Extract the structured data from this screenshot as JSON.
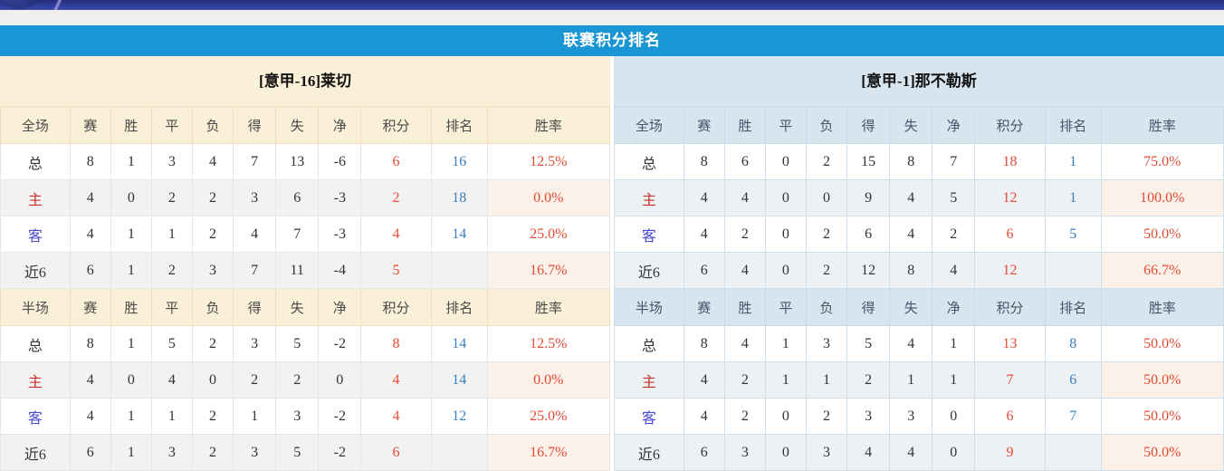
{
  "header": {
    "title": "联赛积分排名"
  },
  "columns": [
    "赛",
    "胜",
    "平",
    "负",
    "得",
    "失",
    "净",
    "积分",
    "排名",
    "胜率"
  ],
  "panels": [
    {
      "id": "left",
      "team_label": "[意甲-16]莱切",
      "sections": [
        {
          "scope_label": "全场",
          "rows": [
            {
              "label": "总",
              "type": "total",
              "values": [
                "8",
                "1",
                "3",
                "4",
                "7",
                "13",
                "-6",
                "6",
                "16",
                "12.5%"
              ]
            },
            {
              "label": "主",
              "type": "home",
              "values": [
                "4",
                "0",
                "2",
                "2",
                "3",
                "6",
                "-3",
                "2",
                "18",
                "0.0%"
              ]
            },
            {
              "label": "客",
              "type": "away",
              "values": [
                "4",
                "1",
                "1",
                "2",
                "4",
                "7",
                "-3",
                "4",
                "14",
                "25.0%"
              ]
            },
            {
              "label": "近6",
              "type": "recent",
              "values": [
                "6",
                "1",
                "2",
                "3",
                "7",
                "11",
                "-4",
                "5",
                "",
                "16.7%"
              ]
            }
          ]
        },
        {
          "scope_label": "半场",
          "rows": [
            {
              "label": "总",
              "type": "total",
              "values": [
                "8",
                "1",
                "5",
                "2",
                "3",
                "5",
                "-2",
                "8",
                "14",
                "12.5%"
              ]
            },
            {
              "label": "主",
              "type": "home",
              "values": [
                "4",
                "0",
                "4",
                "0",
                "2",
                "2",
                "0",
                "4",
                "14",
                "0.0%"
              ]
            },
            {
              "label": "客",
              "type": "away",
              "values": [
                "4",
                "1",
                "1",
                "2",
                "1",
                "3",
                "-2",
                "4",
                "12",
                "25.0%"
              ]
            },
            {
              "label": "近6",
              "type": "recent",
              "values": [
                "6",
                "1",
                "3",
                "2",
                "3",
                "5",
                "-2",
                "6",
                "",
                "16.7%"
              ]
            }
          ]
        }
      ]
    },
    {
      "id": "right",
      "team_label": "[意甲-1]那不勒斯",
      "sections": [
        {
          "scope_label": "全场",
          "rows": [
            {
              "label": "总",
              "type": "total",
              "values": [
                "8",
                "6",
                "0",
                "2",
                "15",
                "8",
                "7",
                "18",
                "1",
                "75.0%"
              ]
            },
            {
              "label": "主",
              "type": "home",
              "values": [
                "4",
                "4",
                "0",
                "0",
                "9",
                "4",
                "5",
                "12",
                "1",
                "100.0%"
              ]
            },
            {
              "label": "客",
              "type": "away",
              "values": [
                "4",
                "2",
                "0",
                "2",
                "6",
                "4",
                "2",
                "6",
                "5",
                "50.0%"
              ]
            },
            {
              "label": "近6",
              "type": "recent",
              "values": [
                "6",
                "4",
                "0",
                "2",
                "12",
                "8",
                "4",
                "12",
                "",
                "66.7%"
              ]
            }
          ]
        },
        {
          "scope_label": "半场",
          "rows": [
            {
              "label": "总",
              "type": "total",
              "values": [
                "8",
                "4",
                "1",
                "3",
                "5",
                "4",
                "1",
                "13",
                "8",
                "50.0%"
              ]
            },
            {
              "label": "主",
              "type": "home",
              "values": [
                "4",
                "2",
                "1",
                "1",
                "2",
                "1",
                "1",
                "7",
                "6",
                "50.0%"
              ]
            },
            {
              "label": "客",
              "type": "away",
              "values": [
                "4",
                "2",
                "0",
                "2",
                "3",
                "3",
                "0",
                "6",
                "7",
                "50.0%"
              ]
            },
            {
              "label": "近6",
              "type": "recent",
              "values": [
                "6",
                "3",
                "0",
                "3",
                "4",
                "4",
                "0",
                "9",
                "",
                "50.0%"
              ]
            }
          ]
        }
      ]
    }
  ],
  "colors": {
    "title_bar_blue": "#1b96d5",
    "nav_navy": "#2d3d98",
    "left_header_cream": "#faf0d7",
    "right_header_blue": "#d9e5ee",
    "alt_row_gray": "#f2f2f2",
    "alt_rate_peach": "#fbf1e9",
    "points_red": "#e64a33",
    "rank_blue": "#3a7fbe",
    "home_label_red": "#c9302a",
    "away_label_blue": "#4a4ad0"
  }
}
